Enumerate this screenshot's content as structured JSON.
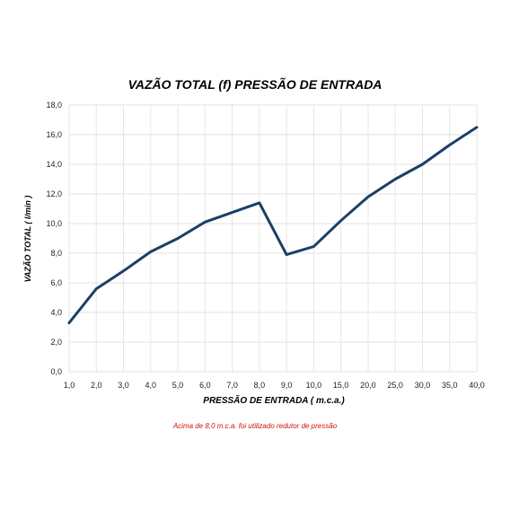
{
  "chart_data": {
    "type": "line",
    "title": "VAZÃO TOTAL (f) PRESSÃO DE ENTRADA",
    "xlabel": "PRESSÃO DE ENTRADA ( m.c.a.)",
    "ylabel": "VAZÃO TOTAL ( l/min )",
    "categories": [
      "1,0",
      "2,0",
      "3,0",
      "4,0",
      "5,0",
      "6,0",
      "7,0",
      "8,0",
      "9,0",
      "10,0",
      "15,0",
      "20,0",
      "25,0",
      "30,0",
      "35,0",
      "40,0"
    ],
    "series": [
      {
        "values": [
          3.3,
          5.6,
          6.8,
          8.1,
          9.0,
          10.1,
          10.75,
          11.4,
          7.9,
          8.45,
          10.2,
          11.8,
          13.0,
          14.0,
          15.3,
          16.5
        ]
      }
    ],
    "yticks": [
      "0,0",
      "2,0",
      "4,0",
      "6,0",
      "8,0",
      "10,0",
      "12,0",
      "14,0",
      "16,0",
      "18,0"
    ],
    "ylim": [
      0,
      18
    ],
    "grid": true,
    "line_color": "#1b3f66",
    "annotation": "Acima de 8,0 m.c.a. foi utilizado redutor de pressão"
  }
}
